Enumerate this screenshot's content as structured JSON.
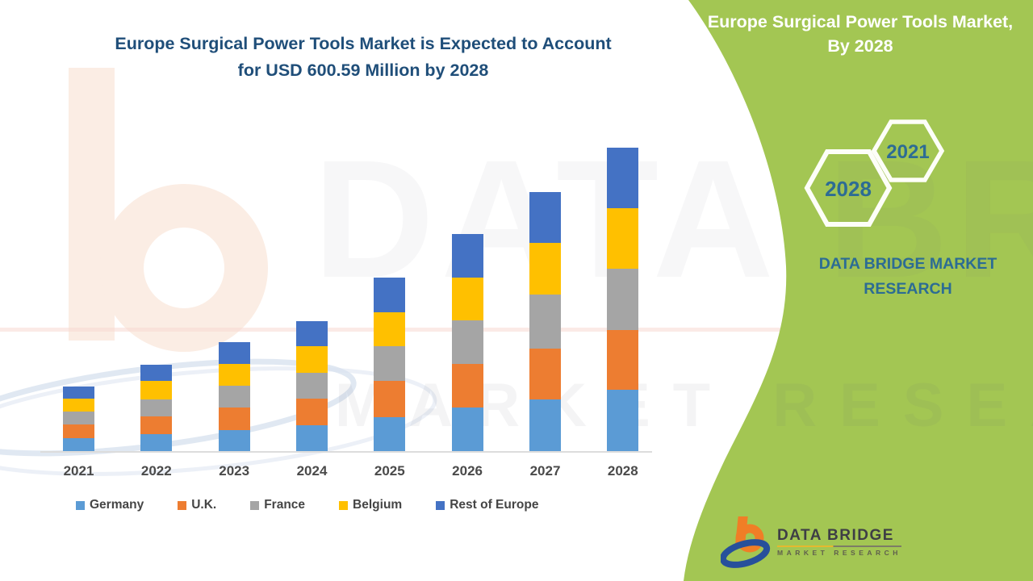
{
  "main_title": {
    "line1": "Europe Surgical Power Tools Market is Expected to Account",
    "line2": "for USD 600.59 Million by 2028"
  },
  "header": {
    "line1": "Europe Surgical Power Tools Market,",
    "line2": "By 2028"
  },
  "side_panel": {
    "hexagons": [
      {
        "label": "2028"
      },
      {
        "label": "2021"
      }
    ],
    "caption": "DATA BRIDGE MARKET RESEARCH"
  },
  "logo": {
    "name": "DATA BRIDGE",
    "tagline": "MARKET  RESEARCH"
  },
  "watermark": {
    "line1": "DATA BRIDGE",
    "line2": "MARKET RESEARCH"
  },
  "colors": {
    "panel_green": "#A3C653",
    "title_navy": "#1F4E79",
    "hex_year_teal": "#2D6C94",
    "axis_gray": "#DCDCDC"
  },
  "chart_data": {
    "type": "bar",
    "stacked": true,
    "title": "Europe Surgical Power Tools Market is Expected to Account for USD 600.59 Million by 2028",
    "unit": "USD Million",
    "values_estimated_from_pixels": true,
    "categories": [
      "2021",
      "2022",
      "2023",
      "2024",
      "2025",
      "2026",
      "2027",
      "2028"
    ],
    "series": [
      {
        "name": "Germany",
        "color": "#5B9BD5",
        "values": [
          25.6,
          33.5,
          41.5,
          51.1,
          67.1,
          86.3,
          102.2,
          121.4
        ]
      },
      {
        "name": "U.K.",
        "color": "#ED7D31",
        "values": [
          27.2,
          35.1,
          44.7,
          52.7,
          71.9,
          86.3,
          100.6,
          118.2
        ]
      },
      {
        "name": "France",
        "color": "#A5A5A5",
        "values": [
          25.6,
          33.5,
          43.1,
          51.1,
          68.7,
          86.3,
          107.0,
          121.4
        ]
      },
      {
        "name": "Belgium",
        "color": "#FFC000",
        "values": [
          25.6,
          36.7,
          43.1,
          52.7,
          67.1,
          84.7,
          102.2,
          119.8
        ]
      },
      {
        "name": "Rest of Europe",
        "color": "#4472C4",
        "values": [
          24.0,
          31.9,
          43.1,
          49.5,
          68.7,
          86.3,
          100.6,
          119.79
        ]
      }
    ],
    "totals": [
      128.0,
      170.7,
      215.5,
      257.1,
      343.5,
      429.9,
      512.6,
      600.59
    ],
    "callout_value_2028": "USD 600.59 Million",
    "axes": {
      "y_axis_visible": false,
      "x_axis_line": true
    },
    "legend_position": "bottom",
    "ylim": [
      0,
      640
    ]
  }
}
